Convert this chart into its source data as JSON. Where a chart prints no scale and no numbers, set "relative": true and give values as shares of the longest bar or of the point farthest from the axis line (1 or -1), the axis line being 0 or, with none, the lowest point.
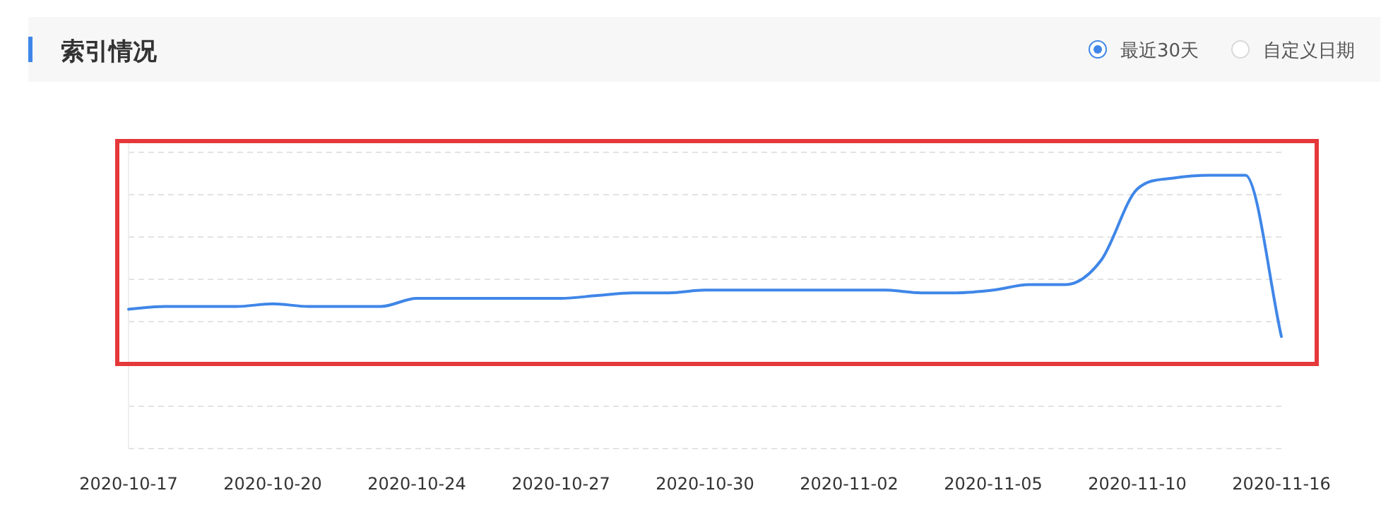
{
  "chart_data": {
    "type": "line",
    "title": "索引情况",
    "annotations": [
      "最近30天",
      "自定义日期"
    ],
    "categories": [
      "2020-10-17",
      null,
      null,
      null,
      "2020-10-20",
      null,
      null,
      null,
      "2020-10-24",
      null,
      null,
      null,
      "2020-10-27",
      null,
      null,
      null,
      "2020-10-30",
      null,
      null,
      null,
      "2020-11-02",
      null,
      null,
      null,
      "2020-11-05",
      null,
      null,
      null,
      "2020-11-10",
      null,
      null,
      null,
      "2020-11-16"
    ],
    "relative": true,
    "grid": "y",
    "marker": "none",
    "line_style": "solid",
    "series": [
      {
        "color": "#3f86e8",
        "values": [
          0.51,
          0.52,
          0.52,
          0.52,
          0.53,
          0.52,
          0.52,
          0.52,
          0.55,
          0.55,
          0.55,
          0.55,
          0.55,
          0.56,
          0.57,
          0.57,
          0.58,
          0.58,
          0.58,
          0.58,
          0.58,
          0.58,
          0.57,
          0.57,
          0.58,
          0.6,
          0.6,
          0.69,
          0.95,
          0.99,
          1,
          1,
          0.41
        ]
      }
    ]
  }
}
